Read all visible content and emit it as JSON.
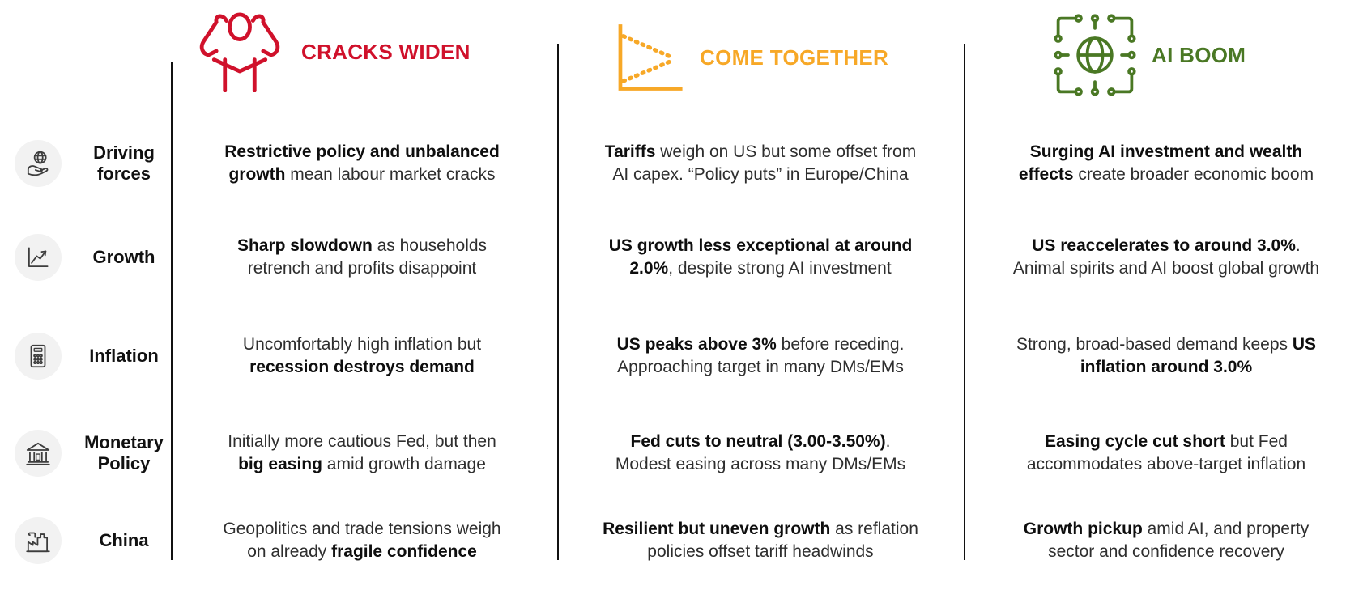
{
  "scenarios": [
    {
      "title": "CRACKS WIDEN",
      "color": "#D0112B",
      "icon": "stressed-person-icon"
    },
    {
      "title": "COME TOGETHER",
      "color": "#F7A827",
      "icon": "converging-forecast-chart-icon"
    },
    {
      "title": "AI BOOM",
      "color": "#4A7824",
      "icon": "ai-globe-circuit-icon"
    }
  ],
  "rows": [
    {
      "label": "Driving forces",
      "icon": "hand-globe-icon",
      "cells": [
        [
          {
            "text": "Restrictive policy and unbalanced\ngrowth",
            "bold": true
          },
          {
            "text": " mean labour market cracks",
            "bold": false
          }
        ],
        [
          {
            "text": "Tariffs",
            "bold": true
          },
          {
            "text": " weigh on US but some offset from\nAI capex. “Policy puts” in Europe/China",
            "bold": false
          }
        ],
        [
          {
            "text": "Surging AI investment and wealth\neffects",
            "bold": true
          },
          {
            "text": " create broader economic boom",
            "bold": false
          }
        ]
      ]
    },
    {
      "label": "Growth",
      "icon": "growth-chart-icon",
      "cells": [
        [
          {
            "text": "Sharp slowdown",
            "bold": true
          },
          {
            "text": " as households\nretrench and profits disappoint",
            "bold": false
          }
        ],
        [
          {
            "text": "US growth less exceptional at around\n2.0%",
            "bold": true
          },
          {
            "text": ", despite strong AI investment",
            "bold": false
          }
        ],
        [
          {
            "text": "US reaccelerates to around 3.0%",
            "bold": true
          },
          {
            "text": ".\nAnimal spirits and AI boost global growth",
            "bold": false
          }
        ]
      ]
    },
    {
      "label": "Inflation",
      "icon": "calculator-icon",
      "cells": [
        [
          {
            "text": "Uncomfortably high inflation but\n",
            "bold": false
          },
          {
            "text": "recession destroys demand",
            "bold": true
          }
        ],
        [
          {
            "text": "US peaks above 3%",
            "bold": true
          },
          {
            "text": " before receding.\nApproaching target in many DMs/EMs",
            "bold": false
          }
        ],
        [
          {
            "text": "Strong, broad-based demand keeps ",
            "bold": false
          },
          {
            "text": "US\ninflation around 3.0%",
            "bold": true
          }
        ]
      ]
    },
    {
      "label": "Monetary Policy",
      "icon": "bank-icon",
      "cells": [
        [
          {
            "text": "Initially more cautious Fed, but then\n",
            "bold": false
          },
          {
            "text": "big easing",
            "bold": true
          },
          {
            "text": " amid growth damage",
            "bold": false
          }
        ],
        [
          {
            "text": "Fed cuts to neutral (3.00-3.50%)",
            "bold": true
          },
          {
            "text": ".\nModest easing across many DMs/EMs",
            "bold": false
          }
        ],
        [
          {
            "text": "Easing cycle cut short",
            "bold": true
          },
          {
            "text": " but Fed\naccommodates above-target inflation",
            "bold": false
          }
        ]
      ]
    },
    {
      "label": "China",
      "icon": "factory-icon",
      "cells": [
        [
          {
            "text": "Geopolitics and trade tensions weigh\non already ",
            "bold": false
          },
          {
            "text": "fragile confidence",
            "bold": true
          }
        ],
        [
          {
            "text": "Resilient but uneven growth",
            "bold": true
          },
          {
            "text": " as reflation\npolicies offset tariff headwinds",
            "bold": false
          }
        ],
        [
          {
            "text": "Growth pickup",
            "bold": true
          },
          {
            "text": " amid AI, and property\nsector and confidence recovery",
            "bold": false
          }
        ]
      ]
    }
  ]
}
